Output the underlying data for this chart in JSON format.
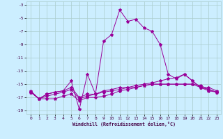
{
  "xlabel": "Windchill (Refroidissement éolien,°C)",
  "bg_color": "#cceeff",
  "grid_color": "#aacccc",
  "line_color": "#990099",
  "xlim": [
    -0.5,
    23.5
  ],
  "ylim": [
    -19.5,
    -2.5
  ],
  "yticks": [
    -3,
    -5,
    -7,
    -9,
    -11,
    -13,
    -15,
    -17,
    -19
  ],
  "xticks": [
    0,
    1,
    2,
    3,
    4,
    5,
    6,
    7,
    8,
    9,
    10,
    11,
    12,
    13,
    14,
    15,
    16,
    17,
    18,
    19,
    20,
    21,
    22,
    23
  ],
  "line1_x": [
    0,
    1,
    2,
    3,
    4,
    5,
    6,
    7,
    8,
    9,
    10,
    11,
    12,
    13,
    14,
    15,
    16,
    17,
    18,
    19,
    20,
    21,
    22,
    23
  ],
  "line1_y": [
    -16.0,
    -17.2,
    -16.5,
    -16.2,
    -16.0,
    -14.5,
    -18.8,
    -13.5,
    -16.5,
    -8.5,
    -7.5,
    -3.8,
    -5.5,
    -5.2,
    -6.5,
    -7.0,
    -9.0,
    -13.5,
    -14.2,
    -13.5,
    -14.5,
    -15.5,
    -15.8,
    -16.2
  ],
  "line2_x": [
    0,
    1,
    2,
    3,
    4,
    5,
    6,
    7,
    8,
    9,
    10,
    11,
    12,
    13,
    14,
    15,
    16,
    17,
    18,
    19,
    20,
    21,
    22,
    23
  ],
  "line2_y": [
    -16.2,
    -17.2,
    -16.5,
    -16.2,
    -16.0,
    -15.5,
    -17.0,
    -16.5,
    -16.5,
    -16.0,
    -15.8,
    -15.5,
    -15.5,
    -15.2,
    -15.0,
    -14.8,
    -14.5,
    -14.2,
    -14.0,
    -13.5,
    -14.5,
    -15.5,
    -15.5,
    -16.0
  ],
  "line3_x": [
    0,
    1,
    2,
    3,
    4,
    5,
    6,
    7,
    8,
    9,
    10,
    11,
    12,
    13,
    14,
    15,
    16,
    17,
    18,
    19,
    20,
    21,
    22,
    23
  ],
  "line3_y": [
    -16.2,
    -17.2,
    -16.8,
    -16.5,
    -16.2,
    -15.8,
    -17.2,
    -16.8,
    -16.5,
    -16.2,
    -16.0,
    -15.8,
    -15.5,
    -15.5,
    -15.2,
    -15.0,
    -15.0,
    -15.0,
    -15.0,
    -15.0,
    -15.0,
    -15.2,
    -15.8,
    -16.2
  ],
  "line4_x": [
    0,
    1,
    2,
    3,
    4,
    5,
    6,
    7,
    8,
    9,
    10,
    11,
    12,
    13,
    14,
    15,
    16,
    17,
    18,
    19,
    20,
    21,
    22,
    23
  ],
  "line4_y": [
    -16.2,
    -17.2,
    -17.2,
    -17.2,
    -16.8,
    -16.5,
    -17.5,
    -17.0,
    -17.0,
    -16.8,
    -16.5,
    -16.0,
    -15.8,
    -15.5,
    -15.2,
    -15.0,
    -15.0,
    -15.0,
    -15.0,
    -15.0,
    -15.0,
    -15.5,
    -16.0,
    -16.2
  ]
}
